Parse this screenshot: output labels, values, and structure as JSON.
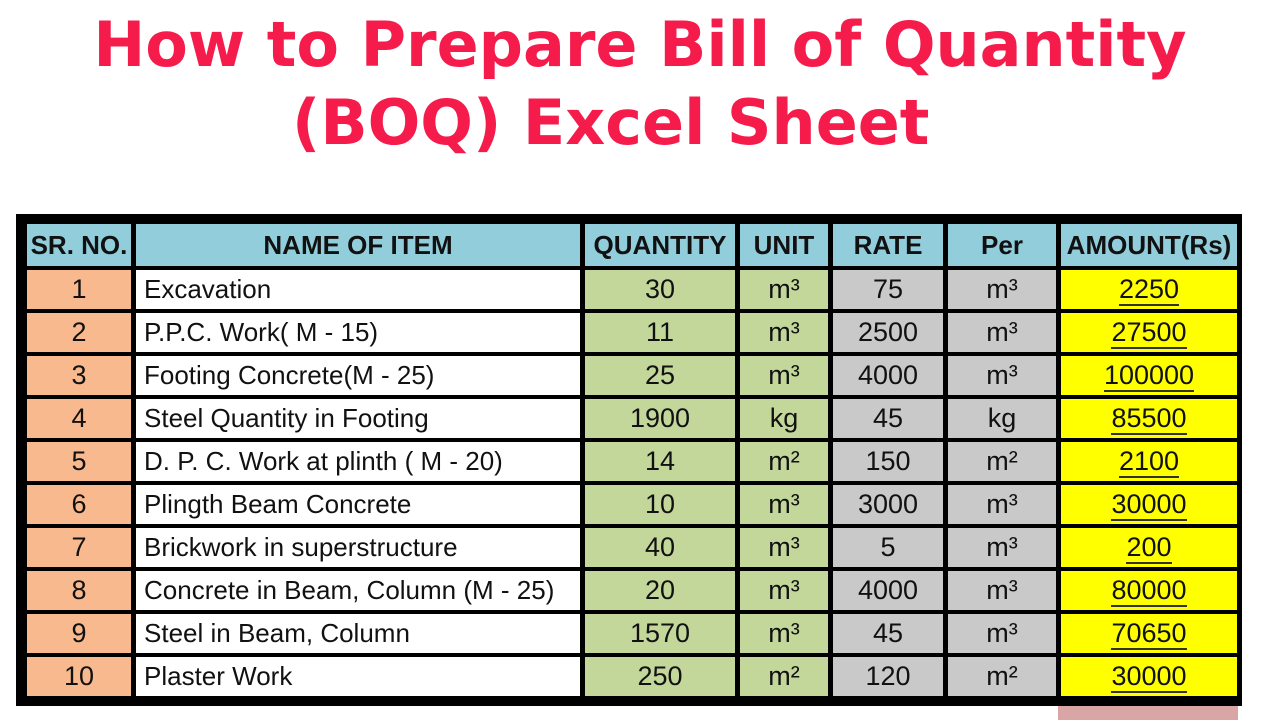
{
  "title": {
    "line1": "How to Prepare Bill of Quantity",
    "line2": "(BOQ) Excel Sheet"
  },
  "table": {
    "headers": [
      "SR. NO.",
      "NAME OF ITEM",
      "QUANTITY",
      "UNIT",
      "RATE",
      "Per",
      "AMOUNT(Rs)"
    ],
    "rows": [
      {
        "sr": "1",
        "name": "Excavation",
        "qty": "30",
        "unit": "m³",
        "rate": "75",
        "per": "m³",
        "amount": "2250"
      },
      {
        "sr": "2",
        "name": "P.P.C. Work( M - 15)",
        "qty": "11",
        "unit": "m³",
        "rate": "2500",
        "per": "m³",
        "amount": "27500"
      },
      {
        "sr": "3",
        "name": "Footing Concrete(M - 25)",
        "qty": "25",
        "unit": "m³",
        "rate": "4000",
        "per": "m³",
        "amount": "100000"
      },
      {
        "sr": "4",
        "name": "Steel Quantity in Footing",
        "qty": "1900",
        "unit": "kg",
        "rate": "45",
        "per": "kg",
        "amount": "85500"
      },
      {
        "sr": "5",
        "name": "D. P. C. Work at plinth ( M - 20)",
        "qty": "14",
        "unit": "m²",
        "rate": "150",
        "per": "m²",
        "amount": "2100"
      },
      {
        "sr": "6",
        "name": "Plingth Beam Concrete",
        "qty": "10",
        "unit": "m³",
        "rate": "3000",
        "per": "m³",
        "amount": "30000"
      },
      {
        "sr": "7",
        "name": "Brickwork in superstructure",
        "qty": "40",
        "unit": "m³",
        "rate": "5",
        "per": "m³",
        "amount": "200"
      },
      {
        "sr": "8",
        "name": "Concrete in Beam, Column (M - 25)",
        "qty": "20",
        "unit": "m³",
        "rate": "4000",
        "per": "m³",
        "amount": "80000"
      },
      {
        "sr": "9",
        "name": "Steel in Beam, Column",
        "qty": "1570",
        "unit": "m³",
        "rate": "45",
        "per": "m³",
        "amount": "70650"
      },
      {
        "sr": "10",
        "name": "Plaster Work",
        "qty": "250",
        "unit": "m²",
        "rate": "120",
        "per": "m²",
        "amount": "30000"
      }
    ]
  },
  "colors": {
    "title": "#f51c4c",
    "header": "#92cddc",
    "sr": "#f8b98e",
    "name": "#ffffff",
    "qty_unit": "#c4d79b",
    "rate_per": "#c9c9c9",
    "amount": "#ffff00",
    "total": "#d9a5a5"
  }
}
